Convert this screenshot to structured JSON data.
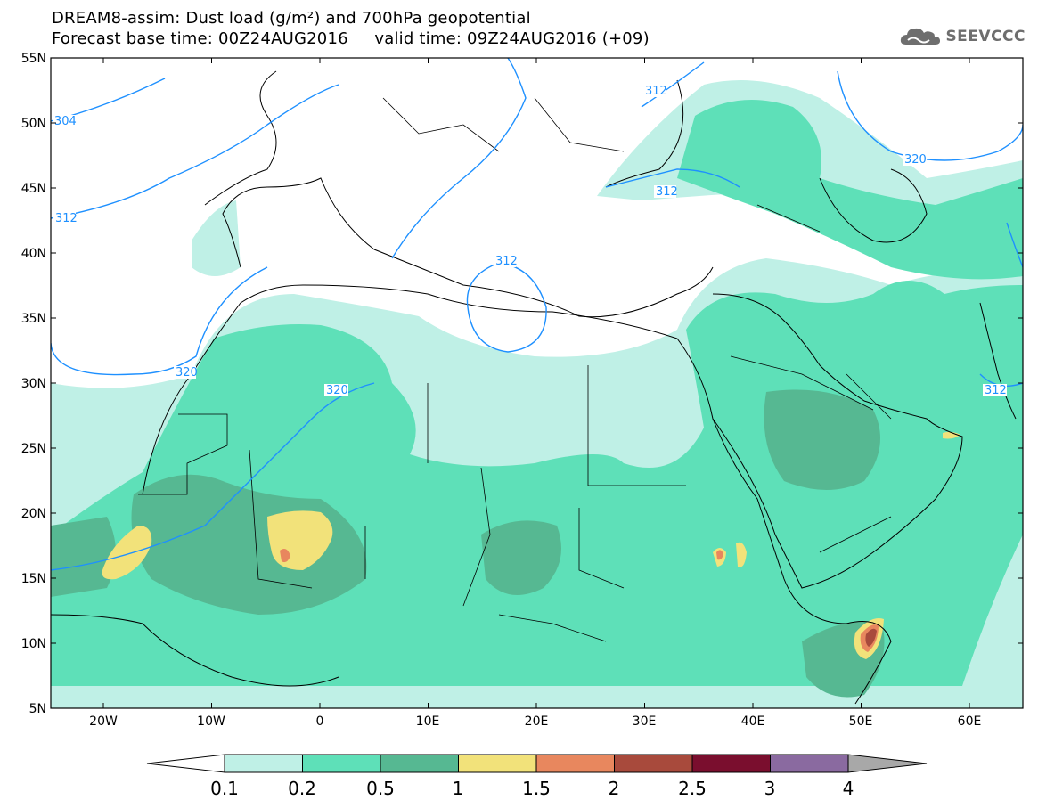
{
  "title": {
    "line1": "DREAM8-assim: Dust load (g/m²) and 700hPa geopotential",
    "line2": "Forecast base time: 00Z24AUG2016     valid time: 09Z24AUG2016 (+09)"
  },
  "logo": {
    "text": "SEEVCCC",
    "icon": "cloud-logo-icon"
  },
  "map": {
    "lat_labels": [
      "55N",
      "50N",
      "45N",
      "40N",
      "35N",
      "30N",
      "25N",
      "20N",
      "15N",
      "10N",
      "5N"
    ],
    "lon_labels": [
      "20W",
      "10W",
      "0",
      "10E",
      "20E",
      "30E",
      "40E",
      "50E",
      "60E"
    ],
    "contour_labels": [
      "304",
      "312",
      "312",
      "312",
      "312",
      "320",
      "320",
      "320",
      "312"
    ],
    "colors": {
      "c01": "#bff0e6",
      "c02": "#5ee0b8",
      "c05": "#56b892",
      "c1": "#f2e27a",
      "c15": "#e8875e",
      "c2": "#a84a3c",
      "c25": "#7a0e2e",
      "c3": "#8a6aa0",
      "c4": "#a8a8a8",
      "contour": "#1e90ff"
    }
  },
  "legend": {
    "labels": [
      "0.1",
      "0.2",
      "0.5",
      "1",
      "1.5",
      "2",
      "2.5",
      "3",
      "4"
    ],
    "colors": [
      "#bff0e6",
      "#5ee0b8",
      "#56b892",
      "#f2e27a",
      "#e8875e",
      "#a84a3c",
      "#7a0e2e",
      "#8a6aa0"
    ]
  }
}
